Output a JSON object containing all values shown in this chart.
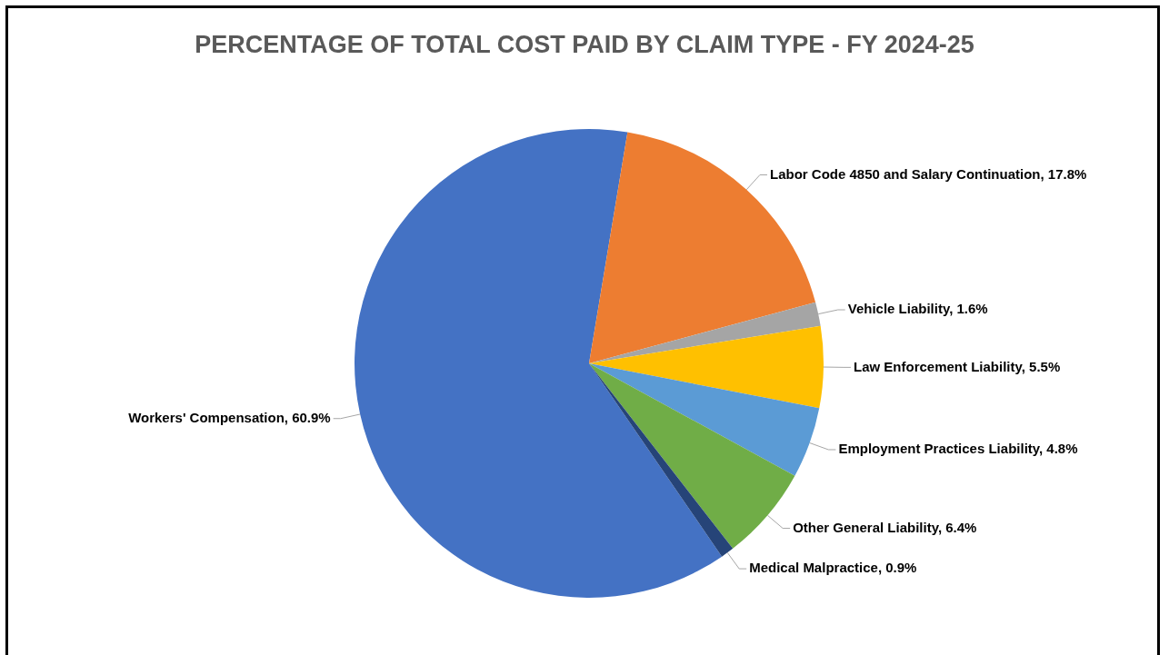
{
  "chart_data": {
    "type": "pie",
    "title": "PERCENTAGE OF TOTAL COST PAID BY CLAIM TYPE - FY 2024-25",
    "categories": [
      "Workers' Compensation",
      "Labor Code 4850 and Salary Continuation",
      "Vehicle Liability",
      "Law Enforcement Liability",
      "Employment Practices Liability",
      "Other General Liability",
      "Medical Malpractice"
    ],
    "values": [
      60.9,
      17.8,
      1.6,
      5.5,
      4.8,
      6.4,
      0.9
    ],
    "value_labels": [
      "60.9%",
      "17.8%",
      "1.6%",
      "5.5%",
      "4.8%",
      "6.4%",
      "0.9%"
    ],
    "colors": [
      "#4472c4",
      "#ed7d31",
      "#a5a5a5",
      "#ffc000",
      "#5b9bd5",
      "#70ad47",
      "#264478"
    ],
    "legend": false
  }
}
